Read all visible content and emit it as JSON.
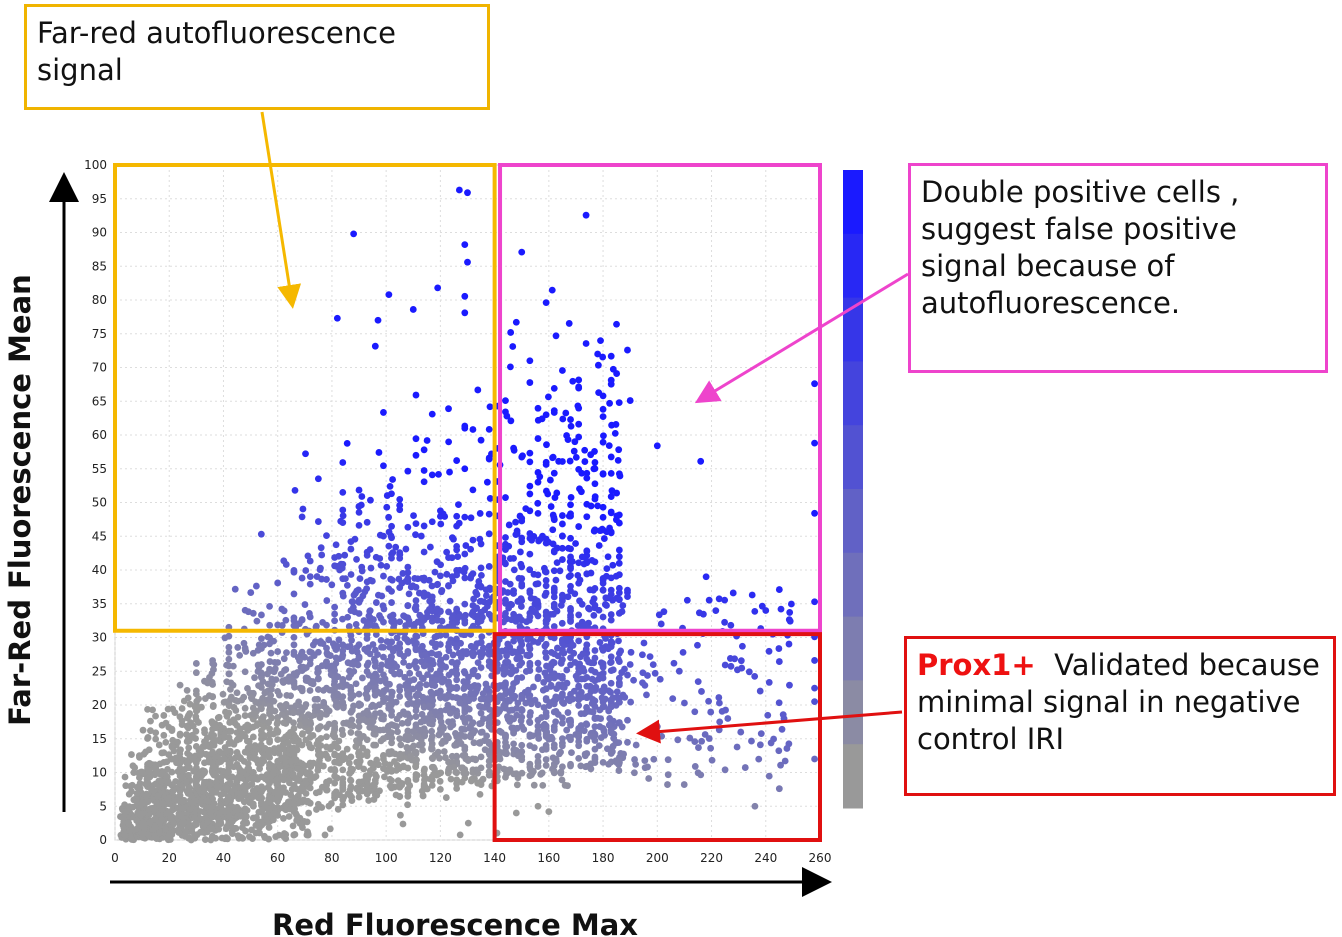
{
  "chart_data": {
    "type": "scatter",
    "xlabel": "Red Fluorescence Max",
    "ylabel": "Far-Red Fluorescence Mean",
    "xlim": [
      0,
      260
    ],
    "ylim": [
      0,
      100
    ],
    "x_ticks": [
      0,
      20,
      40,
      60,
      80,
      100,
      120,
      140,
      160,
      180,
      200,
      220,
      240,
      260
    ],
    "y_ticks": [
      0,
      5,
      10,
      15,
      20,
      25,
      30,
      35,
      40,
      45,
      50,
      55,
      60,
      65,
      70,
      75,
      80,
      85,
      90,
      95,
      100
    ],
    "grid": true,
    "color_scale": {
      "low": "#999999",
      "high": "#1a1aff",
      "steps": 10
    },
    "gates": [
      {
        "name": "far-red-autofluorescence",
        "x_range": [
          0,
          140
        ],
        "y_range": [
          31,
          100
        ],
        "color": "#f5b800"
      },
      {
        "name": "double-positive",
        "x_range": [
          142,
          260
        ],
        "y_range": [
          31,
          100
        ],
        "color": "#ee44cc"
      },
      {
        "name": "prox1-positive",
        "x_range": [
          140,
          260
        ],
        "y_range": [
          0,
          30.5
        ],
        "color": "#e01010"
      }
    ],
    "highlight_points": [
      [
        127,
        96.3
      ],
      [
        130,
        95.9
      ],
      [
        88,
        89.8
      ],
      [
        129,
        88.2
      ],
      [
        130,
        85.6
      ],
      [
        101,
        80.8
      ],
      [
        119,
        81.8
      ],
      [
        110,
        78.6
      ],
      [
        82,
        77.3
      ],
      [
        97,
        77.0
      ],
      [
        148,
        76.7
      ],
      [
        153,
        71.0
      ],
      [
        178,
        72.0
      ],
      [
        185,
        69.1
      ],
      [
        258,
        67.6
      ],
      [
        190,
        65.1
      ],
      [
        180,
        65.8
      ],
      [
        171,
        61.6
      ],
      [
        159,
        63.0
      ],
      [
        146,
        62.1
      ],
      [
        200,
        58.4
      ],
      [
        216,
        56.1
      ],
      [
        258,
        58.8
      ],
      [
        172,
        51.6
      ],
      [
        185,
        51.4
      ],
      [
        178,
        49.5
      ],
      [
        258,
        48.4
      ],
      [
        235,
        36.3
      ],
      [
        245,
        37.1
      ],
      [
        258,
        35.3
      ],
      [
        228,
        36.6
      ],
      [
        240,
        34.0
      ],
      [
        218,
        39.0
      ],
      [
        258,
        30.1
      ],
      [
        258,
        26.6
      ],
      [
        258,
        22.5
      ],
      [
        258,
        20.5
      ],
      [
        258,
        12.0
      ],
      [
        236,
        5.0
      ],
      [
        245,
        7.6
      ],
      [
        225,
        10.4
      ],
      [
        214,
        10.9
      ],
      [
        204,
        11.9
      ],
      [
        192,
        11.2
      ],
      [
        166,
        8.1
      ],
      [
        156,
        5.0
      ],
      [
        160,
        4.2
      ],
      [
        148,
        4.0
      ],
      [
        210,
        20.3
      ],
      [
        226,
        18.0
      ],
      [
        246,
        16.4
      ],
      [
        238,
        14.1
      ],
      [
        223,
        17.5
      ],
      [
        212,
        15.1
      ],
      [
        200,
        16.8
      ],
      [
        196,
        21.5
      ],
      [
        150,
        28.0
      ],
      [
        168,
        27.0
      ],
      [
        180,
        24.0
      ],
      [
        190,
        26.0
      ]
    ]
  },
  "callouts": {
    "far_red": "Far-red autofluorescence signal",
    "double_positive": "Double positive cells , suggest false positive signal because of autofluorescence.",
    "prox1_bold": "Prox1+",
    "prox1_text": "  Validated because minimal signal in negative control IRI"
  },
  "colors": {
    "gate_yellow": "#f5b800",
    "gate_magenta": "#ee44cc",
    "gate_red": "#e01010",
    "point_gray": "#999999",
    "point_blue": "#1a1aff"
  }
}
